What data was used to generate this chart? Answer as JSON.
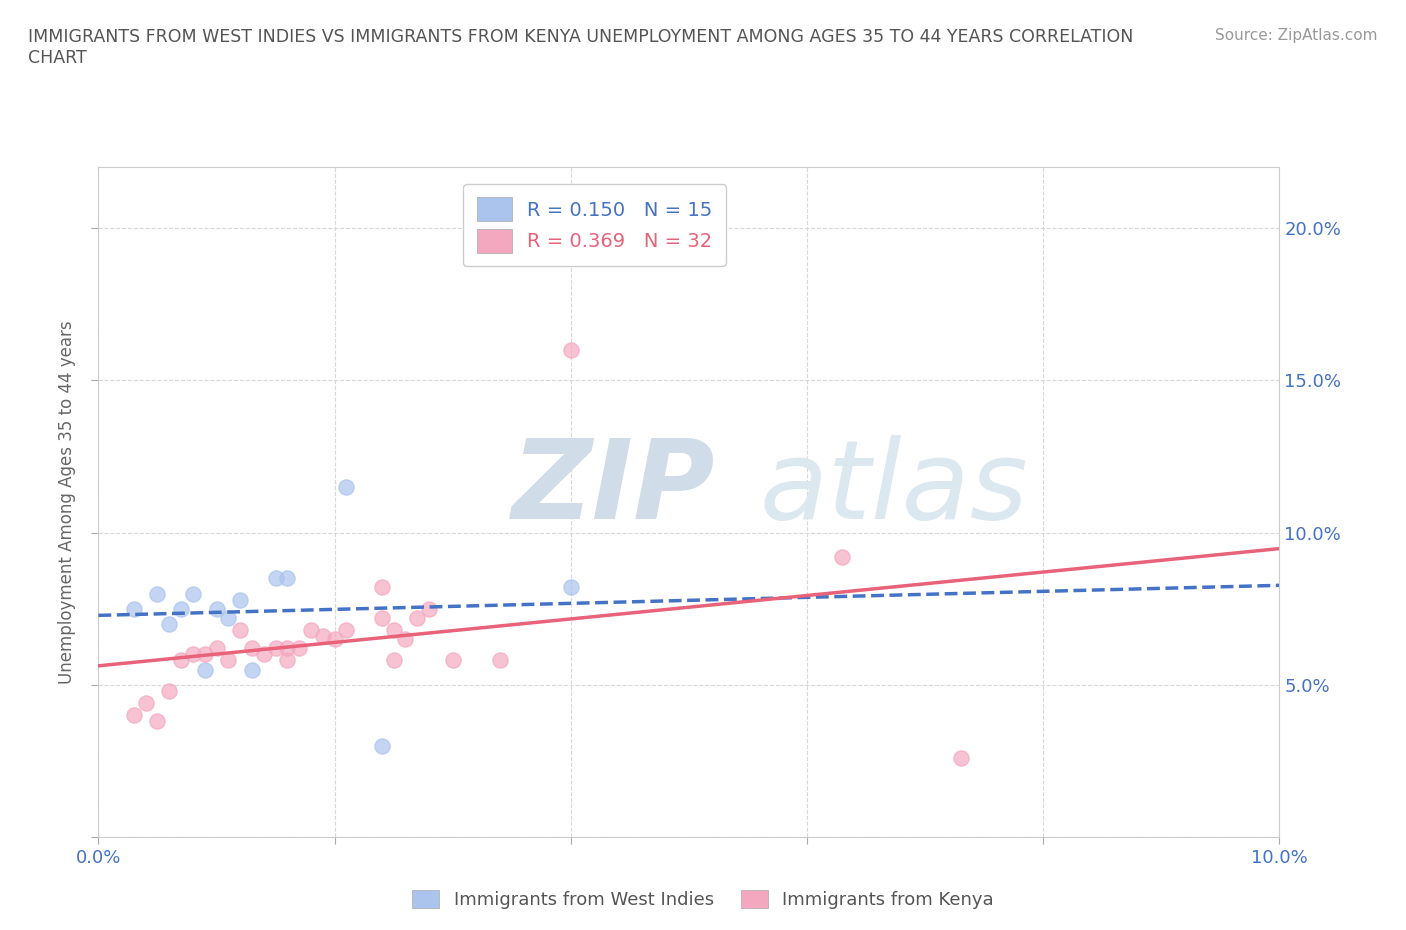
{
  "title": "IMMIGRANTS FROM WEST INDIES VS IMMIGRANTS FROM KENYA UNEMPLOYMENT AMONG AGES 35 TO 44 YEARS CORRELATION\nCHART",
  "source": "Source: ZipAtlas.com",
  "ylabel": "Unemployment Among Ages 35 to 44 years",
  "xlim": [
    0.0,
    0.1
  ],
  "ylim": [
    0.0,
    0.22
  ],
  "xticks": [
    0.0,
    0.02,
    0.04,
    0.06,
    0.08,
    0.1
  ],
  "yticks": [
    0.0,
    0.05,
    0.1,
    0.15,
    0.2
  ],
  "west_indies_color": "#aac4ee",
  "kenya_color": "#f4a8c0",
  "west_indies_line_color": "#4472c4",
  "kenya_line_color": "#e8627a",
  "R_west_indies": 0.15,
  "N_west_indies": 15,
  "R_kenya": 0.369,
  "N_kenya": 32,
  "west_indies_x": [
    0.003,
    0.005,
    0.006,
    0.007,
    0.008,
    0.009,
    0.01,
    0.011,
    0.012,
    0.013,
    0.015,
    0.016,
    0.021,
    0.024,
    0.04
  ],
  "west_indies_y": [
    0.075,
    0.08,
    0.07,
    0.075,
    0.08,
    0.055,
    0.075,
    0.072,
    0.078,
    0.055,
    0.085,
    0.085,
    0.115,
    0.03,
    0.082
  ],
  "kenya_x": [
    0.003,
    0.004,
    0.005,
    0.006,
    0.007,
    0.008,
    0.009,
    0.01,
    0.011,
    0.012,
    0.013,
    0.014,
    0.015,
    0.016,
    0.016,
    0.017,
    0.018,
    0.019,
    0.02,
    0.021,
    0.024,
    0.024,
    0.025,
    0.025,
    0.026,
    0.027,
    0.028,
    0.03,
    0.034,
    0.04,
    0.063,
    0.073
  ],
  "kenya_y": [
    0.04,
    0.044,
    0.038,
    0.048,
    0.058,
    0.06,
    0.06,
    0.062,
    0.058,
    0.068,
    0.062,
    0.06,
    0.062,
    0.058,
    0.062,
    0.062,
    0.068,
    0.066,
    0.065,
    0.068,
    0.072,
    0.082,
    0.058,
    0.068,
    0.065,
    0.072,
    0.075,
    0.058,
    0.058,
    0.16,
    0.092,
    0.026
  ],
  "background_color": "#ffffff",
  "grid_color": "#d8d8d8"
}
